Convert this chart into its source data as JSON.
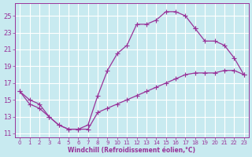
{
  "xlabel": "Windchill (Refroidissement éolien,°C)",
  "bg_color": "#c8eaf0",
  "line_color": "#993399",
  "grid_color": "#ffffff",
  "line1_x": [
    0,
    1,
    2,
    3,
    4,
    5,
    6,
    7,
    8,
    9,
    10,
    11,
    12,
    13,
    14,
    15,
    16,
    17,
    18
  ],
  "line1_y": [
    16.0,
    15.0,
    14.5,
    13.0,
    12.0,
    11.5,
    11.5,
    12.0,
    15.5,
    18.5,
    20.5,
    21.5,
    24.0,
    24.0,
    24.5,
    25.5,
    25.5,
    25.0,
    23.5
  ],
  "line2_x": [
    0,
    1,
    2,
    3,
    4,
    5,
    6,
    7,
    8,
    9,
    10,
    11,
    12,
    13,
    14,
    15,
    16,
    17,
    18,
    19,
    20,
    21,
    22,
    23
  ],
  "line2_y": [
    16.0,
    14.5,
    14.0,
    13.0,
    12.0,
    11.5,
    11.5,
    11.5,
    13.5,
    14.0,
    14.5,
    15.0,
    15.5,
    16.0,
    16.5,
    17.0,
    17.5,
    18.0,
    18.2,
    18.2,
    18.2,
    18.5,
    18.5,
    18.0
  ],
  "line3_x": [
    18,
    19,
    20,
    21,
    22,
    23
  ],
  "line3_y": [
    23.5,
    22.0,
    22.0,
    21.5,
    20.0,
    18.0
  ],
  "xlim": [
    -0.5,
    23.5
  ],
  "ylim": [
    10.5,
    26.5
  ],
  "yticks": [
    11,
    13,
    15,
    17,
    19,
    21,
    23,
    25
  ],
  "xticks": [
    0,
    1,
    2,
    3,
    4,
    5,
    6,
    7,
    8,
    9,
    10,
    11,
    12,
    13,
    14,
    15,
    16,
    17,
    18,
    19,
    20,
    21,
    22,
    23
  ]
}
